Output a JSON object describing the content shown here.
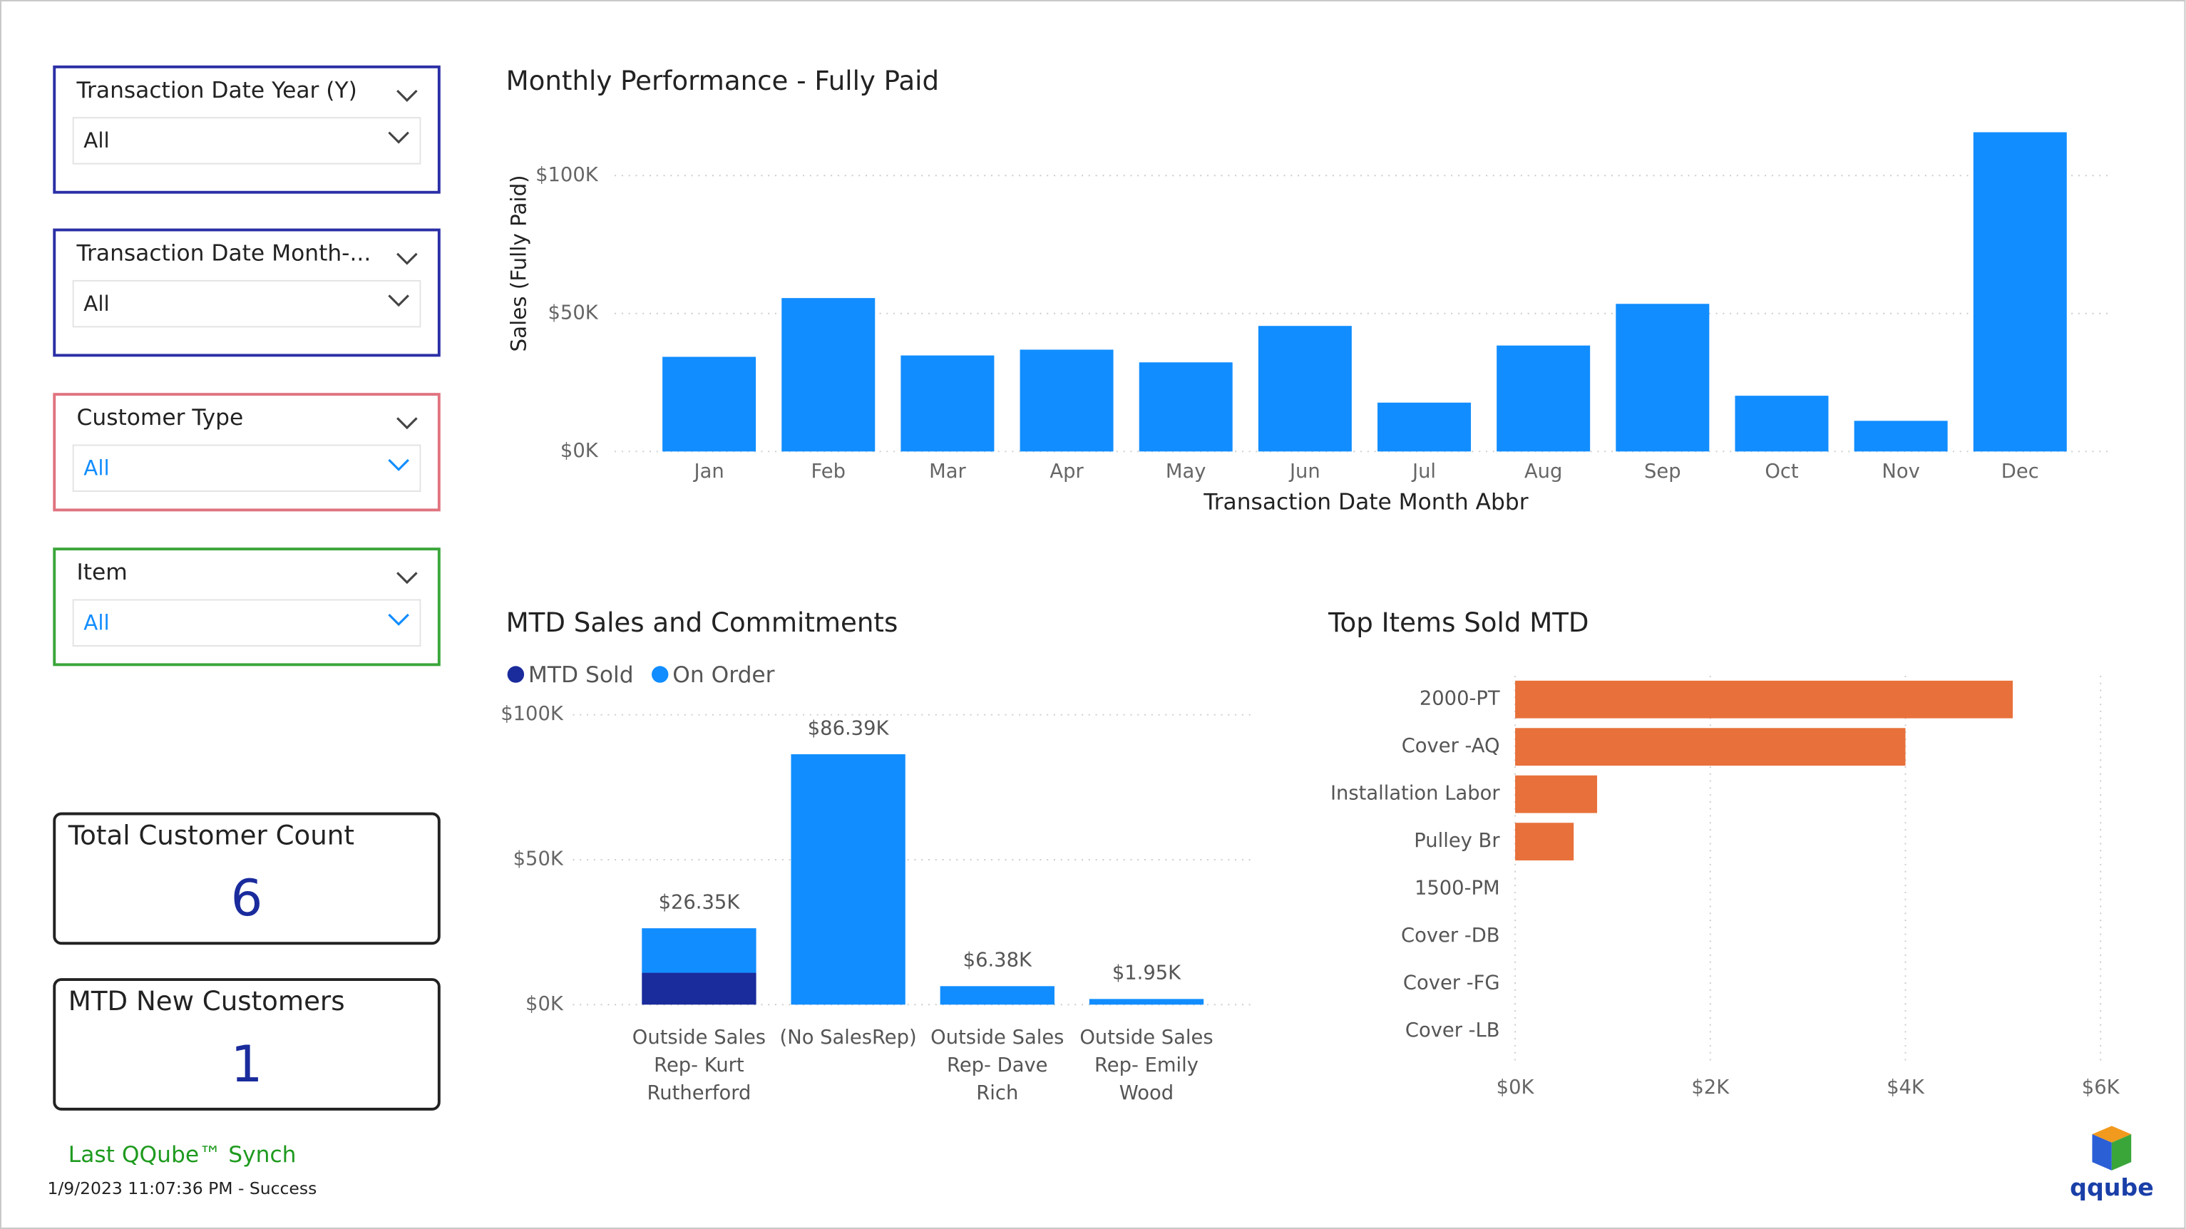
{
  "slicers": [
    {
      "title": "Transaction Date Year (Y)",
      "value": "All",
      "color": "#2b2fa6",
      "value_color": "#222222"
    },
    {
      "title": "Transaction Date Month-...",
      "value": "All",
      "color": "#2b2fa6",
      "value_color": "#222222"
    },
    {
      "title": "Customer Type",
      "value": "All",
      "color": "#e0737f",
      "value_color": "#118dff"
    },
    {
      "title": "Item",
      "value": "All",
      "color": "#3aa63a",
      "value_color": "#118dff"
    }
  ],
  "cards": [
    {
      "title": "Total Customer Count",
      "value": 6
    },
    {
      "title": "MTD New Customers",
      "value": 1
    }
  ],
  "sync": {
    "title": "Last QQube™ Synch",
    "status": "1/9/2023 11:07:36 PM - Success"
  },
  "logo": "qqube",
  "chart_data": [
    {
      "type": "bar",
      "title": "Monthly Performance - Fully Paid",
      "y_label": "Sales (Fully Paid)",
      "x_label": "Transaction Date Month Abbr",
      "categories": [
        "Jan",
        "Feb",
        "Mar",
        "Apr",
        "May",
        "Jun",
        "Jul",
        "Aug",
        "Sep",
        "Oct",
        "Nov",
        "Dec"
      ],
      "values": [
        34300,
        55600,
        34800,
        36900,
        32300,
        45500,
        17700,
        38400,
        53500,
        20200,
        11100,
        115700
      ],
      "color": "#118dff",
      "ylim": [
        0,
        120000
      ],
      "yticks": [
        {
          "value": 0,
          "label": "$0K"
        },
        {
          "value": 50000,
          "label": "$50K"
        },
        {
          "value": 100000,
          "label": "$100K"
        }
      ],
      "grid": true
    },
    {
      "type": "stacked_bar",
      "title": "MTD Sales and Commitments",
      "categories": [
        "Outside Sales Rep- Kurt Rutherford",
        "(No SalesRep)",
        "Outside Sales Rep- Dave Rich",
        "Outside Sales Rep- Emily Wood"
      ],
      "series": [
        {
          "name": "MTD Sold",
          "color": "#1a2b9c",
          "values": [
            11000,
            0,
            0,
            0
          ]
        },
        {
          "name": "On Order",
          "color": "#118dff",
          "values": [
            15350,
            86390,
            6380,
            1950
          ]
        }
      ],
      "totals": [
        26350,
        86390,
        6380,
        1950
      ],
      "total_labels": [
        "$26.35K",
        "$86.39K",
        "$6.38K",
        "$1.95K"
      ],
      "ylim": [
        0,
        100000
      ],
      "yticks": [
        {
          "value": 0,
          "label": "$0K"
        },
        {
          "value": 50000,
          "label": "$50K"
        },
        {
          "value": 100000,
          "label": "$100K"
        }
      ],
      "grid": true
    },
    {
      "type": "hbar",
      "title": "Top Items Sold MTD",
      "categories": [
        "2000-PT",
        "Cover -AQ",
        "Installation Labor",
        "Pulley Br",
        "1500-PM",
        "Cover -DB",
        "Cover -FG",
        "Cover -LB"
      ],
      "values": [
        5100,
        4000,
        840,
        600,
        0,
        0,
        0,
        0
      ],
      "color": "#e8703a",
      "xlim": [
        0,
        6000
      ],
      "xticks": [
        {
          "value": 0,
          "label": "$0K"
        },
        {
          "value": 2000,
          "label": "$2K"
        },
        {
          "value": 4000,
          "label": "$4K"
        },
        {
          "value": 6000,
          "label": "$6K"
        }
      ],
      "grid": true
    }
  ]
}
